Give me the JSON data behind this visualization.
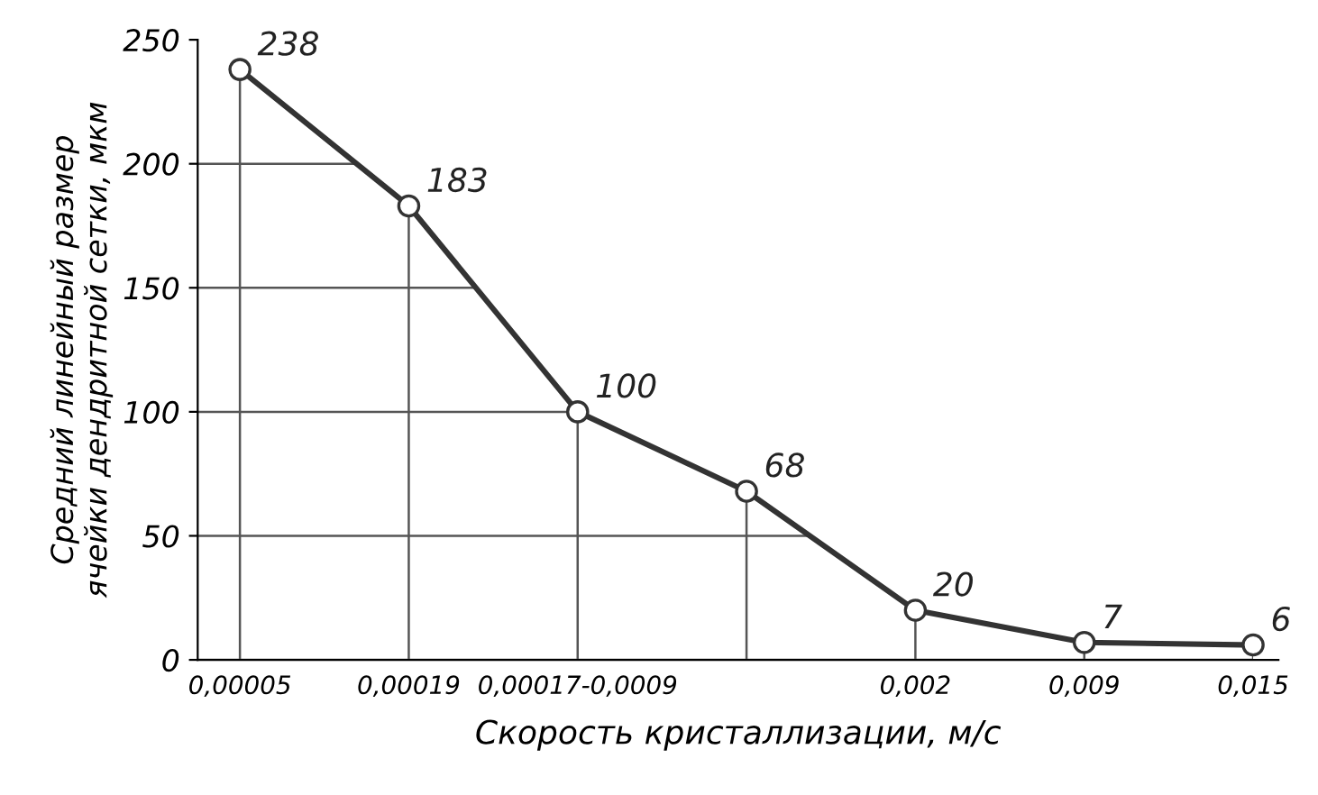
{
  "chart_data": {
    "type": "line",
    "xlabel": "Скорость кристаллизации, м/с",
    "ylabel": "Средний линейный размер\nячейки дендритной сетки, мкм",
    "categories": [
      "0,00005",
      "0,00019",
      "0,00017-0,0009",
      null,
      "0,002",
      "0,009",
      "0,015"
    ],
    "series": [
      {
        "color": "#333333",
        "values": [
          238,
          183,
          100,
          68,
          20,
          7,
          6
        ]
      }
    ],
    "ylim": [
      0,
      250
    ],
    "yticks": [
      0,
      50,
      100,
      150,
      200,
      250
    ],
    "data_labels": true,
    "grid": true,
    "marker": "circle",
    "line_style": "solid",
    "legend": false
  }
}
